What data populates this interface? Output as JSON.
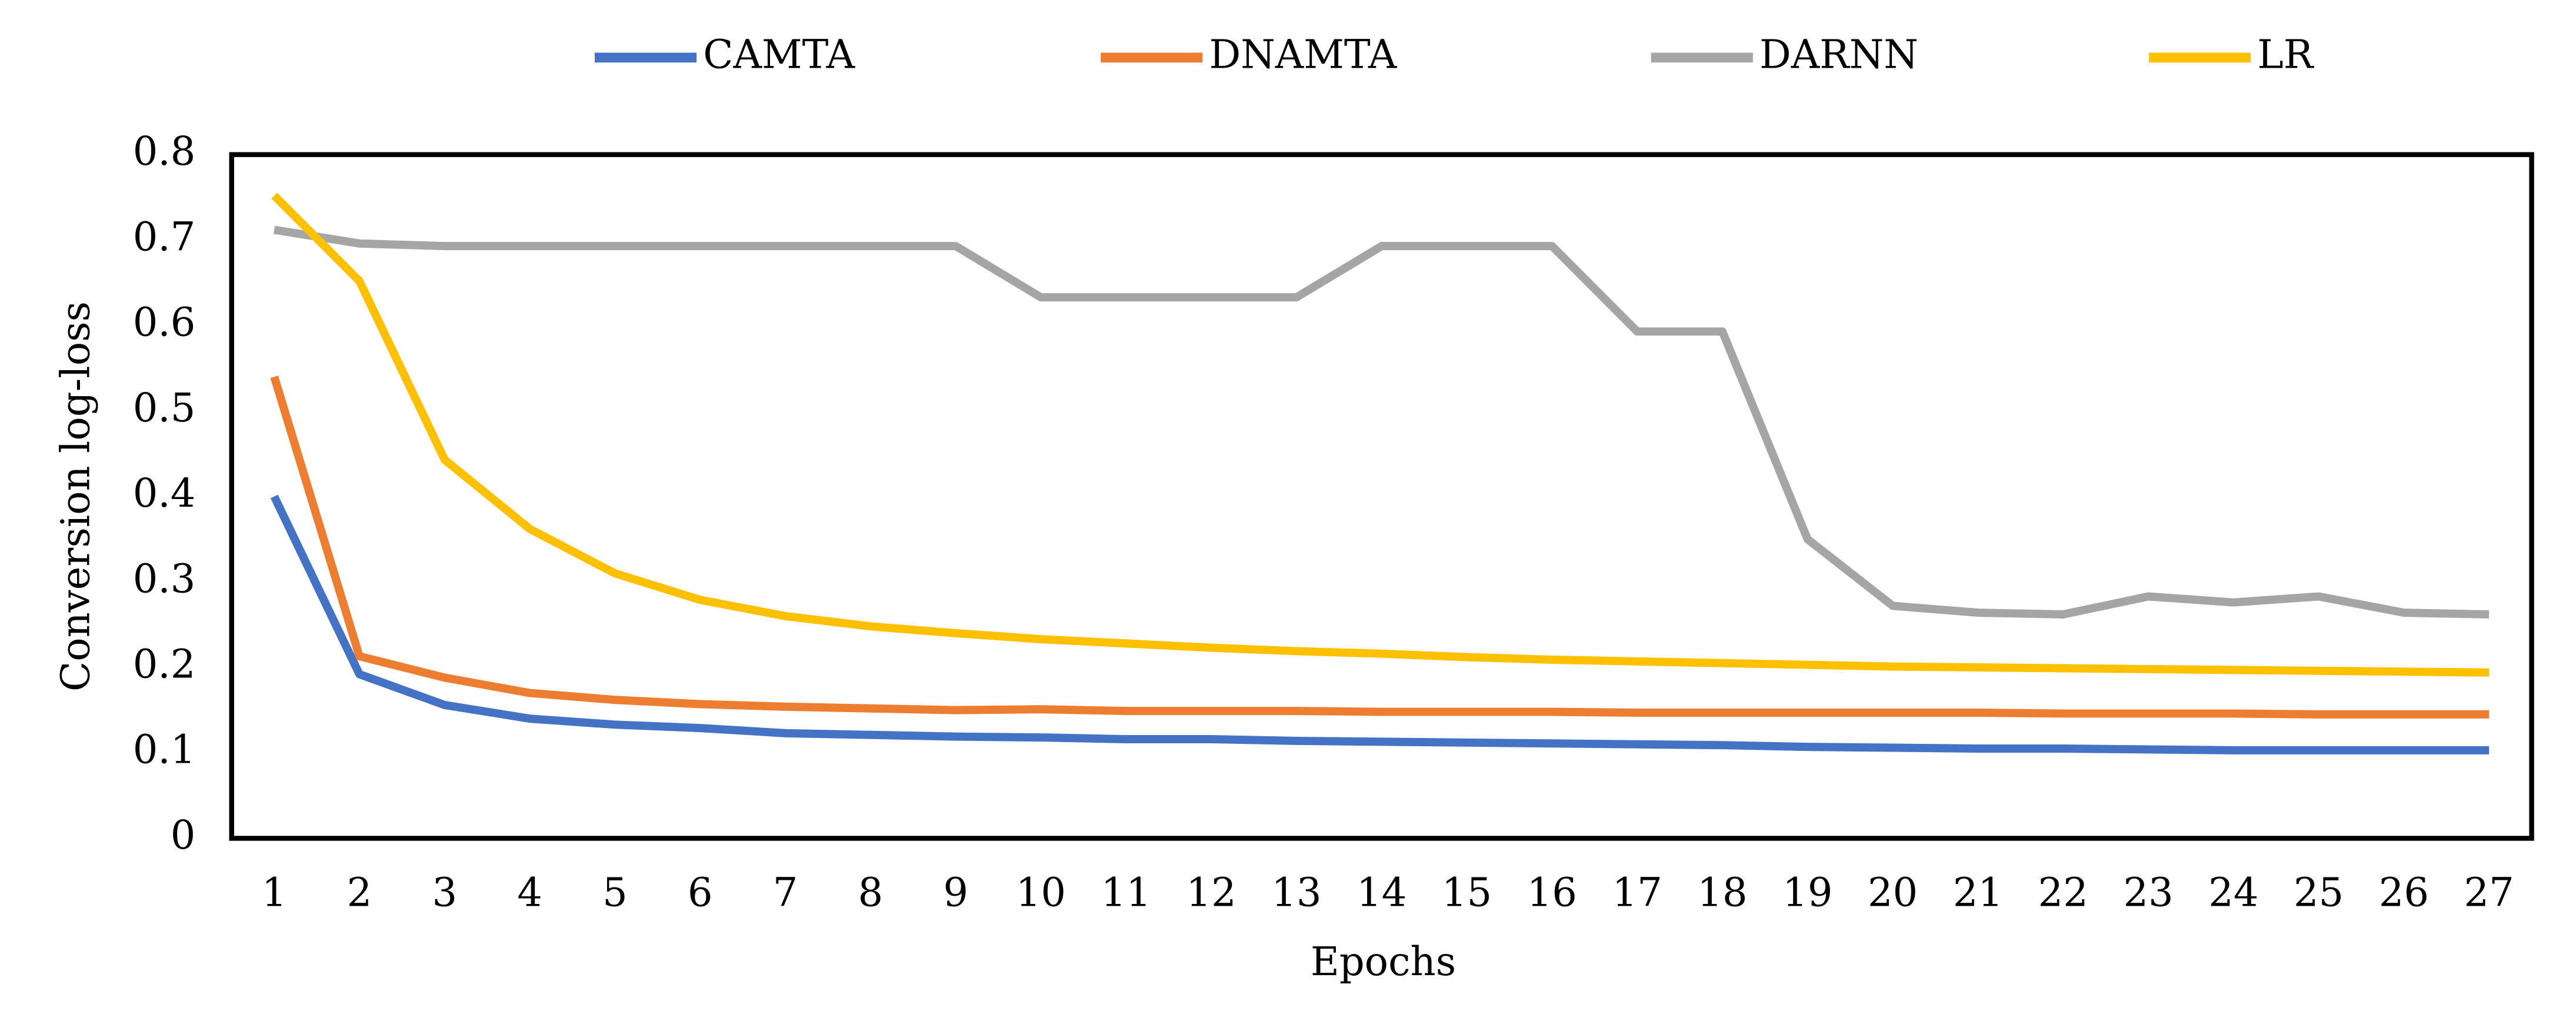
{
  "chart_data": {
    "type": "line",
    "x_label": "Epochs",
    "y_label": "Conversion  log-loss",
    "categories": [
      1,
      2,
      3,
      4,
      5,
      6,
      7,
      8,
      9,
      10,
      11,
      12,
      13,
      14,
      15,
      16,
      17,
      18,
      19,
      20,
      21,
      22,
      23,
      24,
      25,
      26,
      27
    ],
    "ylim": [
      0,
      0.8
    ],
    "yticks": [
      0,
      0.1,
      0.2,
      0.3,
      0.4,
      0.5,
      0.6,
      0.7,
      0.8
    ],
    "grid": false,
    "legend": "top",
    "series": [
      {
        "name": "CAMTA",
        "color": "#4472c4",
        "values": [
          0.4,
          0.192,
          0.156,
          0.14,
          0.133,
          0.129,
          0.123,
          0.121,
          0.119,
          0.118,
          0.116,
          0.116,
          0.114,
          0.113,
          0.112,
          0.111,
          0.11,
          0.109,
          0.107,
          0.106,
          0.105,
          0.105,
          0.104,
          0.103,
          0.103,
          0.103,
          0.103
        ]
      },
      {
        "name": "DNAMTA",
        "color": "#ed7d31",
        "values": [
          0.54,
          0.213,
          0.188,
          0.17,
          0.162,
          0.157,
          0.154,
          0.152,
          0.15,
          0.151,
          0.149,
          0.149,
          0.149,
          0.148,
          0.148,
          0.148,
          0.147,
          0.147,
          0.147,
          0.147,
          0.147,
          0.146,
          0.146,
          0.146,
          0.145,
          0.145,
          0.145
        ]
      },
      {
        "name": "DARNN",
        "color": "#a5a5a5",
        "values": [
          0.712,
          0.696,
          0.693,
          0.693,
          0.693,
          0.693,
          0.693,
          0.693,
          0.693,
          0.633,
          0.633,
          0.633,
          0.633,
          0.693,
          0.693,
          0.693,
          0.593,
          0.593,
          0.35,
          0.272,
          0.264,
          0.262,
          0.283,
          0.276,
          0.283,
          0.264,
          0.262
        ]
      },
      {
        "name": "LR",
        "color": "#ffc000",
        "values": [
          0.752,
          0.652,
          0.443,
          0.362,
          0.31,
          0.279,
          0.26,
          0.248,
          0.24,
          0.233,
          0.228,
          0.223,
          0.219,
          0.216,
          0.212,
          0.209,
          0.207,
          0.205,
          0.203,
          0.201,
          0.2,
          0.199,
          0.198,
          0.197,
          0.196,
          0.195,
          0.194
        ]
      }
    ]
  }
}
